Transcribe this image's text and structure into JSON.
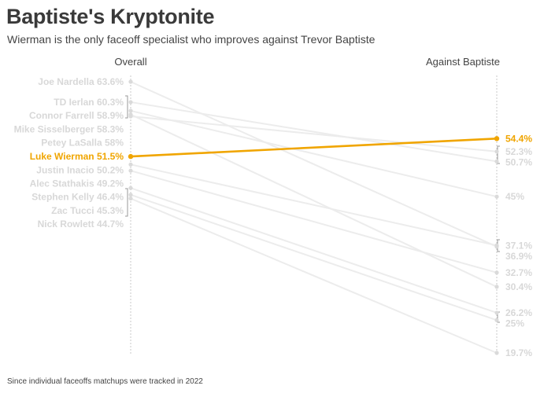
{
  "header": {
    "title": "Baptiste's Kryptonite",
    "subtitle": "Wierman is the only faceoff specialist who improves against Trevor Baptiste"
  },
  "footnote": "Since individual faceoffs matchups were tracked in 2022",
  "chart_data": {
    "type": "slope",
    "title": "Baptiste's Kryptonite",
    "subtitle": "Wierman is the only faceoff specialist who improves against Trevor Baptiste",
    "categories": [
      "Overall",
      "Against Baptiste"
    ],
    "units": "faceoff win %",
    "highlight": "Luke Wierman",
    "colors": {
      "highlight": "#f0a500",
      "base": "#ececec"
    },
    "series": [
      {
        "name": "Joe Nardella",
        "overall": 63.6,
        "against": 36.9
      },
      {
        "name": "TD Ierlan",
        "overall": 60.3,
        "against": 50.7
      },
      {
        "name": "Connor Farrell",
        "overall": 58.9,
        "against": 45.0
      },
      {
        "name": "Mike Sisselberger",
        "overall": 58.3,
        "against": 30.4
      },
      {
        "name": "Petey LaSalla",
        "overall": 58.0,
        "against": 52.3
      },
      {
        "name": "Luke Wierman",
        "overall": 51.5,
        "against": 54.4
      },
      {
        "name": "Justin Inacio",
        "overall": 50.2,
        "against": 37.1
      },
      {
        "name": "Alec Stathakis",
        "overall": 49.2,
        "against": 32.7
      },
      {
        "name": "Stephen Kelly",
        "overall": 46.4,
        "against": 26.2
      },
      {
        "name": "Zac Tucci",
        "overall": 45.3,
        "against": 25.0
      },
      {
        "name": "Nick Rowlett",
        "overall": 44.7,
        "against": 19.7
      }
    ]
  }
}
